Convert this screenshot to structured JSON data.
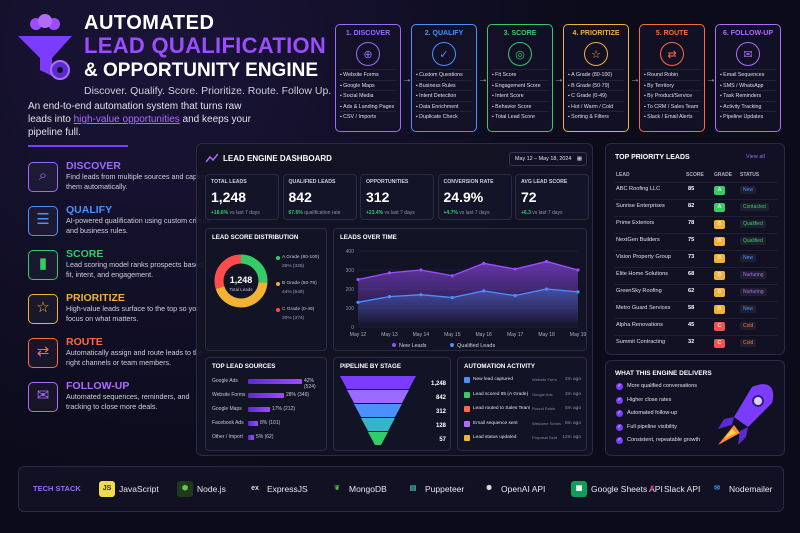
{
  "header": {
    "line1": "AUTOMATED",
    "line2": "LEAD QUALIFICATION",
    "line3": "& OPPORTUNITY ENGINE",
    "tagline": "Discover. Qualify. Score. Prioritize. Route. Follow Up.",
    "intro_a": "An end-to-end automation system that turns raw leads into ",
    "intro_hl": "high-value opportunities",
    "intro_b": " and keeps your pipeline full."
  },
  "steps": [
    {
      "name": "DISCOVER",
      "desc": "Find leads from multiple sources and capture them automatically.",
      "color": "#9b6bff",
      "icon": "search-icon"
    },
    {
      "name": "QUALIFY",
      "desc": "AI-powered qualification using custom criteria and business rules.",
      "color": "#4a90ff",
      "icon": "form-icon"
    },
    {
      "name": "SCORE",
      "desc": "Lead scoring model ranks prospects based on fit, intent, and engagement.",
      "color": "#33cc66",
      "icon": "bar-chart-icon"
    },
    {
      "name": "PRIORITIZE",
      "desc": "High-value leads surface to the top so you focus on what matters.",
      "color": "#f2b233",
      "icon": "star-icon"
    },
    {
      "name": "ROUTE",
      "desc": "Automatically assign and route leads to the right channels or team members.",
      "color": "#ff6b3d",
      "icon": "route-icon"
    },
    {
      "name": "FOLLOW-UP",
      "desc": "Automated sequences, reminders, and tracking to close more deals.",
      "color": "#b06bff",
      "icon": "mail-icon"
    }
  ],
  "pipeline": [
    {
      "title": "1. DISCOVER",
      "color": "#9b6bff",
      "glyph": "⊕",
      "items": [
        "Website Forms",
        "Google Maps",
        "Social Media",
        "Ads & Landing Pages",
        "CSV / Imports"
      ]
    },
    {
      "title": "2. QUALIFY",
      "color": "#4a90ff",
      "glyph": "✓",
      "items": [
        "Custom Questions",
        "Business Rules",
        "Intent Detection",
        "Data Enrichment",
        "Duplicate Check"
      ]
    },
    {
      "title": "3. SCORE",
      "color": "#33cc66",
      "glyph": "◎",
      "items": [
        "Fit Score",
        "Engagement Score",
        "Intent Score",
        "Behavior Score",
        "Total Lead Score"
      ]
    },
    {
      "title": "4. PRIORITIZE",
      "color": "#f2b233",
      "glyph": "☆",
      "items": [
        "A Grade (80-100)",
        "B Grade (50-79)",
        "C Grade (0-49)",
        "Hot / Warm / Cold",
        "Sorting & Filters"
      ]
    },
    {
      "title": "5. ROUTE",
      "color": "#ff6b3d",
      "glyph": "⇄",
      "items": [
        "Round Robin",
        "By Territory",
        "By Product/Service",
        "To CRM / Sales Team",
        "Slack / Email Alerts"
      ]
    },
    {
      "title": "6. FOLLOW-UP",
      "color": "#b06bff",
      "glyph": "✉",
      "items": [
        "Email Sequences",
        "SMS / WhatsApp",
        "Task Reminders",
        "Activity Tracking",
        "Pipeline Updates"
      ]
    }
  ],
  "dashboard": {
    "title": "LEAD ENGINE DASHBOARD",
    "date": "May 12 – May 18, 2024",
    "kpis": [
      {
        "label": "TOTAL LEADS",
        "value": "1,248",
        "delta": "+18.6%",
        "note": "vs last 7 days"
      },
      {
        "label": "QUALIFIED LEADS",
        "value": "842",
        "delta": "67.6%",
        "note": "qualification rate"
      },
      {
        "label": "OPPORTUNITIES",
        "value": "312",
        "delta": "+23.4%",
        "note": "vs last 7 days"
      },
      {
        "label": "CONVERSION RATE",
        "value": "24.9%",
        "delta": "+4.7%",
        "note": "vs last 7 days"
      },
      {
        "label": "AVG LEAD SCORE",
        "value": "72",
        "delta": "+6.3",
        "note": "vs last 7 days"
      }
    ],
    "dist": {
      "title": "LEAD SCORE DISTRIBUTION",
      "center": "1,248",
      "center_sub": "Total Leads",
      "segments": [
        {
          "label": "A Grade (80-100)",
          "val": "26% (325)",
          "pct": 26,
          "color": "#33cc66"
        },
        {
          "label": "B Grade (50-79)",
          "val": "44% (549)",
          "pct": 44,
          "color": "#f2b233"
        },
        {
          "label": "C Grade (0-49)",
          "val": "30% (374)",
          "pct": 30,
          "color": "#ff4d4d"
        }
      ]
    },
    "sources": {
      "title": "TOP LEAD SOURCES",
      "rows": [
        {
          "name": "Google Ads",
          "val": "42% (524)",
          "pct": 42
        },
        {
          "name": "Website Forms",
          "val": "28% (349)",
          "pct": 28
        },
        {
          "name": "Google Maps",
          "val": "17% (212)",
          "pct": 17
        },
        {
          "name": "Facebook Ads",
          "val": "8% (101)",
          "pct": 8
        },
        {
          "name": "Other / Import",
          "val": "5% (62)",
          "pct": 5
        }
      ]
    },
    "funnel": {
      "title": "PIPELINE BY STAGE",
      "values": [
        "1,248",
        "842",
        "312",
        "128",
        "57"
      ],
      "colors": [
        "#7b3cff",
        "#9b6bff",
        "#4a90ff",
        "#33b6cc",
        "#33cc66"
      ]
    },
    "activity": {
      "title": "AUTOMATION ACTIVITY",
      "rows": [
        {
          "text": "New lead captured",
          "src": "Website Form",
          "time": "2m ago",
          "color": "#4a90ff"
        },
        {
          "text": "Lead scored 85 (A Grade)",
          "src": "Google Ads",
          "time": "3m ago",
          "color": "#33cc66"
        },
        {
          "text": "Lead routed to Sales Team",
          "src": "Round Robin",
          "time": "5m ago",
          "color": "#ff6b3d"
        },
        {
          "text": "Email sequence sent",
          "src": "Welcome Series",
          "time": "8m ago",
          "color": "#b06bff"
        },
        {
          "text": "Lead status updated",
          "src": "Proposal Sent",
          "time": "12m ago",
          "color": "#f2b233"
        }
      ]
    }
  },
  "chart_data": {
    "type": "area",
    "title": "LEADS OVER TIME",
    "categories": [
      "May 12",
      "May 13",
      "May 14",
      "May 15",
      "May 16",
      "May 17",
      "May 18",
      "May 19"
    ],
    "ylim": [
      0,
      400
    ],
    "yticks": [
      "400",
      "300",
      "200",
      "100",
      "0"
    ],
    "series": [
      {
        "name": "New Leads",
        "values": [
          250,
          285,
          300,
          270,
          335,
          305,
          345,
          300
        ],
        "color": "#9b4dff"
      },
      {
        "name": "Qualified Leads",
        "values": [
          130,
          160,
          170,
          155,
          190,
          165,
          200,
          185
        ],
        "color": "#4a90ff"
      }
    ]
  },
  "priority": {
    "title": "TOP PRIORITY LEADS",
    "view_all": "View all",
    "cols": [
      "LEAD",
      "SCORE",
      "GRADE",
      "STATUS"
    ],
    "rows": [
      {
        "lead": "ABC Roofing LLC",
        "score": "85",
        "grade": "A",
        "status": "New",
        "gc": "#33cc66",
        "sc": "#4a90ff"
      },
      {
        "lead": "Sunrise Enterprises",
        "score": "82",
        "grade": "A",
        "status": "Contacted",
        "gc": "#33cc66",
        "sc": "#33cc66"
      },
      {
        "lead": "Prime Exteriors",
        "score": "78",
        "grade": "B",
        "status": "Qualified",
        "gc": "#f2b233",
        "sc": "#33cc66"
      },
      {
        "lead": "NextGen Builders",
        "score": "75",
        "grade": "B",
        "status": "Qualified",
        "gc": "#f2b233",
        "sc": "#33cc66"
      },
      {
        "lead": "Vision Property Group",
        "score": "73",
        "grade": "B",
        "status": "New",
        "gc": "#f2b233",
        "sc": "#4a90ff"
      },
      {
        "lead": "Elite Home Solutions",
        "score": "68",
        "grade": "B",
        "status": "Nurturing",
        "gc": "#f2b233",
        "sc": "#b06bff"
      },
      {
        "lead": "GreenSky Roofing",
        "score": "62",
        "grade": "B",
        "status": "Nurturing",
        "gc": "#f2b233",
        "sc": "#b06bff"
      },
      {
        "lead": "Metro Guard Services",
        "score": "58",
        "grade": "B",
        "status": "New",
        "gc": "#f2b233",
        "sc": "#4a90ff"
      },
      {
        "lead": "Alpha Renovations",
        "score": "45",
        "grade": "C",
        "status": "Cold",
        "gc": "#ff4d4d",
        "sc": "#ff6b3d"
      },
      {
        "lead": "Summit Contracting",
        "score": "32",
        "grade": "C",
        "status": "Cold",
        "gc": "#ff4d4d",
        "sc": "#ff6b3d"
      }
    ]
  },
  "delivers": {
    "title": "WHAT THIS ENGINE DELIVERS",
    "items": [
      "More qualified conversations",
      "Higher close rates",
      "Automated follow-up",
      "Full pipeline visibility",
      "Consistent, repeatable growth"
    ]
  },
  "tech": {
    "label": "TECH STACK",
    "items": [
      {
        "name": "JavaScript",
        "badge": "JS",
        "bg": "#f0db4f",
        "fg": "#222"
      },
      {
        "name": "Node.js",
        "badge": "⬢",
        "bg": "#1e3a1e",
        "fg": "#6cc24a"
      },
      {
        "name": "ExpressJS",
        "badge": "ex",
        "bg": "transparent",
        "fg": "#ddd"
      },
      {
        "name": "MongoDB",
        "badge": "❦",
        "bg": "transparent",
        "fg": "#4db33d"
      },
      {
        "name": "Puppeteer",
        "badge": "▤",
        "bg": "transparent",
        "fg": "#40b5a4"
      },
      {
        "name": "OpenAI API",
        "badge": "✺",
        "bg": "transparent",
        "fg": "#ddd"
      },
      {
        "name": "Google Sheets API",
        "badge": "▦",
        "bg": "#0f9d58",
        "fg": "#fff"
      },
      {
        "name": "Slack API",
        "badge": "#",
        "bg": "transparent",
        "fg": "#e01e5a"
      },
      {
        "name": "Nodemailer",
        "badge": "✉",
        "bg": "transparent",
        "fg": "#3f8ad8"
      }
    ]
  }
}
